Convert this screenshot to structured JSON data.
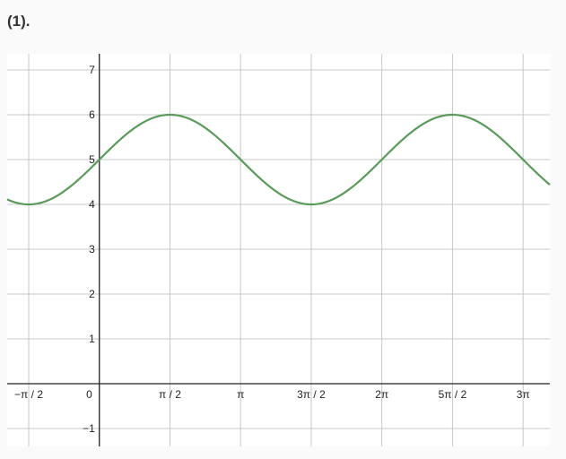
{
  "problem_label": "(1).",
  "chart_data": {
    "type": "line",
    "function": "5 + sin(x)",
    "title": "",
    "xlabel": "",
    "ylabel": "",
    "xlim": [
      -2.05,
      10.02
    ],
    "ylim": [
      -1.4,
      7.36
    ],
    "grid": true,
    "x_ticks": [
      {
        "value": -1.5708,
        "label": "−π / 2"
      },
      {
        "value": 0,
        "label": "0"
      },
      {
        "value": 1.5708,
        "label": "π / 2"
      },
      {
        "value": 3.1416,
        "label": "π"
      },
      {
        "value": 4.7124,
        "label": "3π / 2"
      },
      {
        "value": 6.2832,
        "label": "2π"
      },
      {
        "value": 7.854,
        "label": "5π / 2"
      },
      {
        "value": 9.4248,
        "label": "3π"
      }
    ],
    "y_ticks": [
      {
        "value": -1,
        "label": "−1"
      },
      {
        "value": 1,
        "label": "1"
      },
      {
        "value": 2,
        "label": "2"
      },
      {
        "value": 3,
        "label": "3"
      },
      {
        "value": 4,
        "label": "4"
      },
      {
        "value": 5,
        "label": "5"
      },
      {
        "value": 6,
        "label": "6"
      },
      {
        "value": 7,
        "label": "7"
      }
    ],
    "series": [
      {
        "color": "#5a9a5a",
        "key_points": [
          [
            -1.5708,
            4
          ],
          [
            0,
            5
          ],
          [
            1.5708,
            6
          ],
          [
            3.1416,
            5
          ],
          [
            4.7124,
            4
          ],
          [
            6.2832,
            5
          ],
          [
            7.854,
            6
          ],
          [
            9.4248,
            5
          ]
        ]
      }
    ]
  }
}
